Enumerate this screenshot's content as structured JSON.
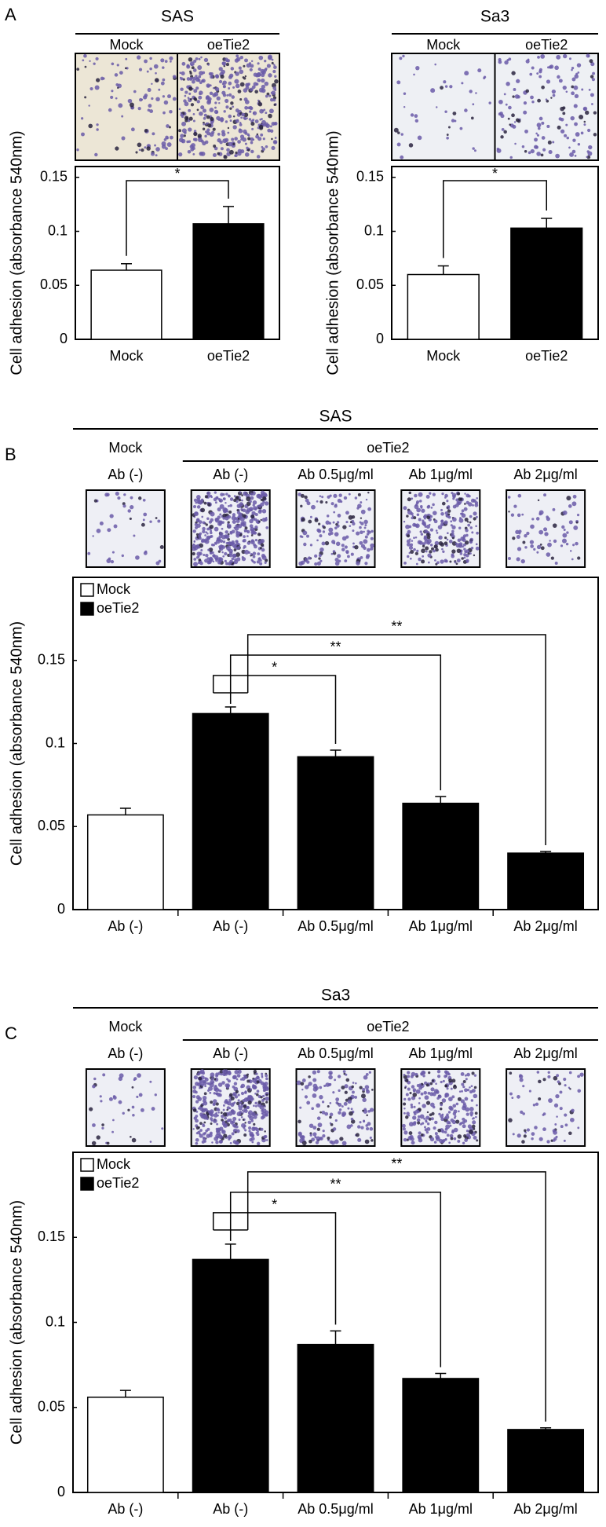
{
  "panels": [
    "A",
    "B",
    "C"
  ],
  "chart_data": [
    {
      "type": "bar",
      "title": "SAS",
      "ylabel": "Cell adhesion (absorbance 540nm)",
      "categories": [
        "Mock",
        "oeTie2"
      ],
      "values": [
        0.064,
        0.107
      ],
      "errors": [
        0.006,
        0.016
      ],
      "bar_colors": [
        "#ffffff",
        "#000000"
      ],
      "ylim": [
        0,
        0.16
      ],
      "yticks": [
        0,
        0.05,
        0.1,
        0.15
      ],
      "significance": [
        "*"
      ]
    },
    {
      "type": "bar",
      "title": "Sa3",
      "ylabel": "Cell adhesion (absorbance 540nm)",
      "categories": [
        "Mock",
        "oeTie2"
      ],
      "values": [
        0.06,
        0.103
      ],
      "errors": [
        0.008,
        0.009
      ],
      "bar_colors": [
        "#ffffff",
        "#000000"
      ],
      "ylim": [
        0,
        0.16
      ],
      "yticks": [
        0,
        0.05,
        0.1,
        0.15
      ],
      "significance": [
        "*"
      ]
    },
    {
      "type": "grouped_bar",
      "title": "SAS",
      "ylabel": "Cell adhesion (absorbance 540nm)",
      "categories": [
        "Ab (-)",
        "Ab (-)",
        "Ab 0.5μg/ml",
        "Ab 1μg/ml",
        "Ab 2μg/ml"
      ],
      "series": [
        {
          "name": "Mock",
          "color": "#ffffff",
          "values": [
            0.057,
            null,
            null,
            null,
            null
          ],
          "errors": [
            0.004,
            null,
            null,
            null,
            null
          ]
        },
        {
          "name": "oeTie2",
          "color": "#000000",
          "values": [
            null,
            0.118,
            0.092,
            0.064,
            0.034
          ],
          "errors": [
            null,
            0.004,
            0.004,
            0.004,
            0.001
          ]
        }
      ],
      "ylim": [
        0,
        0.2
      ],
      "yticks": [
        0,
        0.05,
        0.1,
        0.15
      ],
      "legend": "upper left",
      "significance": [
        "*",
        "**",
        "**"
      ]
    },
    {
      "type": "grouped_bar",
      "title": "Sa3",
      "ylabel": "Cell adhesion (absorbance 540nm)",
      "categories": [
        "Ab (-)",
        "Ab (-)",
        "Ab 0.5μg/ml",
        "Ab 1μg/ml",
        "Ab 2μg/ml"
      ],
      "series": [
        {
          "name": "Mock",
          "color": "#ffffff",
          "values": [
            0.056,
            null,
            null,
            null,
            null
          ],
          "errors": [
            0.004,
            null,
            null,
            null,
            null
          ]
        },
        {
          "name": "oeTie2",
          "color": "#000000",
          "values": [
            null,
            0.137,
            0.087,
            0.067,
            0.037
          ],
          "errors": [
            null,
            0.009,
            0.008,
            0.003,
            0.001
          ]
        }
      ],
      "ylim": [
        0,
        0.2
      ],
      "yticks": [
        0,
        0.05,
        0.1,
        0.15
      ],
      "legend": "upper left",
      "significance": [
        "*",
        "**",
        "**"
      ]
    }
  ]
}
